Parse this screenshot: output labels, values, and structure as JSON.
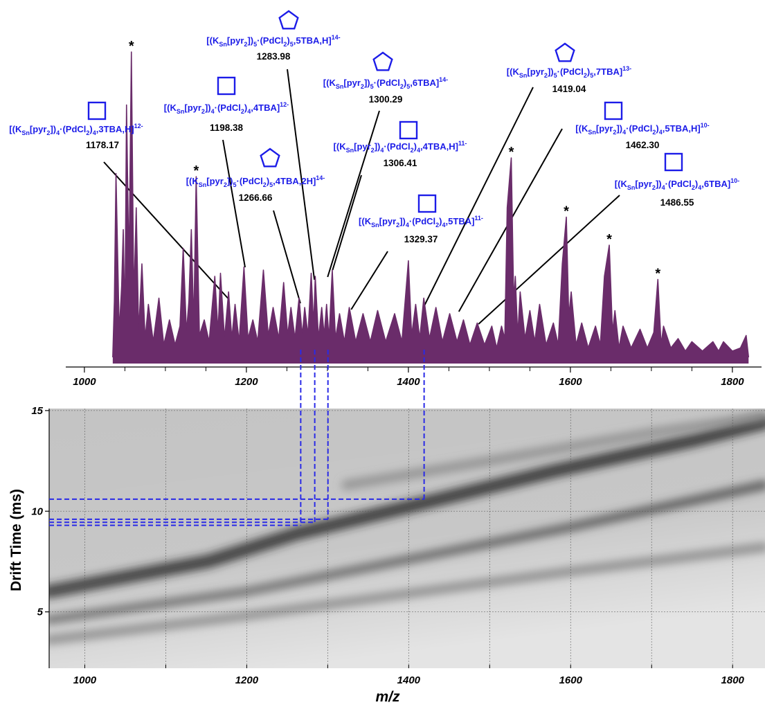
{
  "chart_data": [
    {
      "type": "area",
      "color": "#6a2c6a",
      "x": [
        1035,
        1037,
        1039,
        1043,
        1046,
        1048,
        1050,
        1052,
        1055,
        1058,
        1061,
        1064,
        1067,
        1071,
        1075,
        1079,
        1085,
        1092,
        1098,
        1105,
        1112,
        1118,
        1122,
        1126,
        1129,
        1132,
        1135,
        1138,
        1142,
        1148,
        1154,
        1161,
        1165,
        1168,
        1173,
        1178,
        1182,
        1186,
        1191,
        1197,
        1202,
        1208,
        1214,
        1221,
        1227,
        1233,
        1240,
        1246,
        1251,
        1255,
        1260,
        1265,
        1269,
        1272,
        1276,
        1280,
        1283,
        1285,
        1289,
        1293,
        1296,
        1299,
        1302,
        1306,
        1310,
        1315,
        1321,
        1327,
        1335,
        1344,
        1353,
        1362,
        1372,
        1383,
        1392,
        1400,
        1404,
        1409,
        1414,
        1419,
        1426,
        1434,
        1442,
        1451,
        1460,
        1468,
        1476,
        1485,
        1494,
        1503,
        1509,
        1515,
        1519,
        1522,
        1527,
        1530,
        1532,
        1535,
        1538,
        1544,
        1550,
        1556,
        1562,
        1570,
        1579,
        1585,
        1590,
        1595,
        1598,
        1601,
        1607,
        1614,
        1622,
        1631,
        1637,
        1642,
        1648,
        1652,
        1655,
        1660,
        1665,
        1675,
        1686,
        1695,
        1703,
        1708,
        1712,
        1715,
        1724,
        1733,
        1742,
        1750,
        1763,
        1776,
        1783,
        1789,
        1800,
        1810,
        1817,
        1820
      ],
      "values": [
        2,
        20,
        61,
        10,
        25,
        43,
        12,
        83,
        30,
        100,
        20,
        50,
        10,
        32,
        8,
        19,
        7,
        21,
        6,
        14,
        6,
        12,
        37,
        10,
        20,
        43,
        12,
        60,
        9,
        14,
        7,
        28,
        10,
        29,
        8,
        23,
        8,
        19,
        7,
        31,
        8,
        14,
        7,
        30,
        9,
        18,
        8,
        26,
        9,
        18,
        8,
        21,
        9,
        18,
        9,
        29,
        12,
        28,
        8,
        18,
        9,
        19,
        8,
        30,
        8,
        16,
        7,
        18,
        7,
        16,
        7,
        17,
        7,
        16,
        7,
        33,
        9,
        19,
        8,
        21,
        8,
        18,
        7,
        16,
        7,
        14,
        6,
        13,
        6,
        12,
        5,
        12,
        8,
        50,
        66,
        20,
        28,
        9,
        23,
        8,
        17,
        7,
        19,
        6,
        13,
        6,
        32,
        47,
        15,
        23,
        6,
        13,
        5,
        12,
        6,
        28,
        38,
        10,
        17,
        5,
        12,
        5,
        11,
        5,
        10,
        27,
        6,
        12,
        5,
        8,
        4,
        7,
        4,
        7,
        4,
        7,
        4,
        5,
        9,
        2
      ],
      "xlim": [
        977,
        1836
      ],
      "xticks": [
        1000,
        1200,
        1400,
        1600,
        1800
      ],
      "xminor_ticks": [
        1050,
        1100,
        1150,
        1250,
        1300,
        1350,
        1450,
        1500,
        1550,
        1650,
        1700,
        1750
      ],
      "ylim": [
        0,
        100
      ],
      "star_marker": "*",
      "stars": [
        1058,
        1138,
        1527,
        1595,
        1648,
        1708
      ],
      "annotation_color": "#1c1ce8",
      "guide_color": "#2a2ae6",
      "annotations": [
        {
          "shape": "square",
          "formula": [
            "[(K",
            {
              "sub": "Sn"
            },
            "[pyr",
            {
              "sub": "2"
            },
            "])",
            {
              "sub": "4"
            },
            "·(PdCl",
            {
              "sub": "2"
            },
            ")",
            {
              "sub": "4"
            },
            ",3TBA,H]",
            {
              "sup": "12-"
            }
          ],
          "mz": 1178.17
        },
        {
          "shape": "square",
          "formula": [
            "[(K",
            {
              "sub": "Sn"
            },
            "[pyr",
            {
              "sub": "2"
            },
            "])",
            {
              "sub": "4"
            },
            "·(PdCl",
            {
              "sub": "2"
            },
            ")",
            {
              "sub": "4"
            },
            ",4TBA]",
            {
              "sup": "12-"
            }
          ],
          "mz": 1198.38
        },
        {
          "shape": "pentagon",
          "formula": [
            "[(K",
            {
              "sub": "Sn"
            },
            "[pyr",
            {
              "sub": "2"
            },
            "])",
            {
              "sub": "5"
            },
            "·(PdCl",
            {
              "sub": "2"
            },
            ")",
            {
              "sub": "5"
            },
            ",4TBA,2H]",
            {
              "sup": "14-"
            }
          ],
          "mz": 1266.66,
          "drift_time": 9.3
        },
        {
          "shape": "pentagon",
          "formula": [
            "[(K",
            {
              "sub": "Sn"
            },
            "[pyr",
            {
              "sub": "2"
            },
            "])",
            {
              "sub": "5"
            },
            "·(PdCl",
            {
              "sub": "2"
            },
            ")",
            {
              "sub": "5"
            },
            ",5TBA,H]",
            {
              "sup": "14-"
            }
          ],
          "mz": 1283.98,
          "drift_time": 9.45
        },
        {
          "shape": "pentagon",
          "formula": [
            "[(K",
            {
              "sub": "Sn"
            },
            "[pyr",
            {
              "sub": "2"
            },
            "])",
            {
              "sub": "5"
            },
            "·(PdCl",
            {
              "sub": "2"
            },
            ")",
            {
              "sub": "5"
            },
            ",6TBA]",
            {
              "sup": "14-"
            }
          ],
          "mz": 1300.29,
          "drift_time": 9.6
        },
        {
          "shape": "square",
          "formula": [
            "[(K",
            {
              "sub": "Sn"
            },
            "[pyr",
            {
              "sub": "2"
            },
            "])",
            {
              "sub": "4"
            },
            "·(PdCl",
            {
              "sub": "2"
            },
            ")",
            {
              "sub": "4"
            },
            ",4TBA,H]",
            {
              "sup": "11-"
            }
          ],
          "mz": 1306.41
        },
        {
          "shape": "square",
          "formula": [
            "[(K",
            {
              "sub": "Sn"
            },
            "[pyr",
            {
              "sub": "2"
            },
            "])",
            {
              "sub": "4"
            },
            "·(PdCl",
            {
              "sub": "2"
            },
            ")",
            {
              "sub": "4"
            },
            ",5TBA]",
            {
              "sup": "11-"
            }
          ],
          "mz": 1329.37
        },
        {
          "shape": "pentagon",
          "formula": [
            "[(K",
            {
              "sub": "Sn"
            },
            "[pyr",
            {
              "sub": "2"
            },
            "])",
            {
              "sub": "5"
            },
            "·(PdCl",
            {
              "sub": "2"
            },
            ")",
            {
              "sub": "5"
            },
            ",7TBA]",
            {
              "sup": "13-"
            }
          ],
          "mz": 1419.04,
          "drift_time": 10.6
        },
        {
          "shape": "square",
          "formula": [
            "[(K",
            {
              "sub": "Sn"
            },
            "[pyr",
            {
              "sub": "2"
            },
            "])",
            {
              "sub": "4"
            },
            "·(PdCl",
            {
              "sub": "2"
            },
            ")",
            {
              "sub": "4"
            },
            ",5TBA,H]",
            {
              "sup": "10-"
            }
          ],
          "mz": {
            "value": 1462.3,
            "label": "1462.30"
          }
        },
        {
          "shape": "square",
          "formula": [
            "[(K",
            {
              "sub": "Sn"
            },
            "[pyr",
            {
              "sub": "2"
            },
            "])",
            {
              "sub": "4"
            },
            "·(PdCl",
            {
              "sub": "2"
            },
            ")",
            {
              "sub": "4"
            },
            ",6TBA]",
            {
              "sup": "10-"
            }
          ],
          "mz": 1486.55
        }
      ]
    },
    {
      "type": "heatmap",
      "xlabel": "m/z",
      "ylabel": "Drift Time (ms)",
      "xlim": [
        956,
        1840
      ],
      "xticks": [
        1000,
        1200,
        1400,
        1600,
        1800
      ],
      "xminor_ticks": [
        1100,
        1300,
        1500,
        1700
      ],
      "ylim": [
        2.2,
        15.1
      ],
      "yticks": [
        5,
        10,
        15
      ],
      "grid": true,
      "background": "#c4c4c4",
      "bands": [
        {
          "x": [
            956,
            1152,
            1263,
            1408,
            1580,
            1750,
            1839
          ],
          "y": [
            6.0,
            7.5,
            8.9,
            10.3,
            12.0,
            13.5,
            14.4
          ],
          "color": "#262626"
        },
        {
          "x": [
            956,
            1200,
            1400,
            1600,
            1839
          ],
          "y": [
            4.6,
            6.0,
            7.6,
            9.2,
            11.3
          ],
          "color": "#4a4a4a"
        },
        {
          "x": [
            956,
            1200,
            1400,
            1600,
            1839
          ],
          "y": [
            3.6,
            4.8,
            5.9,
            7.0,
            8.2
          ],
          "color": "#5a5a5a"
        },
        {
          "x": [
            1323,
            1500,
            1700,
            1836
          ],
          "y": [
            11.3,
            12.5,
            13.9,
            14.7
          ],
          "color": "#8a8a8a"
        }
      ]
    }
  ]
}
